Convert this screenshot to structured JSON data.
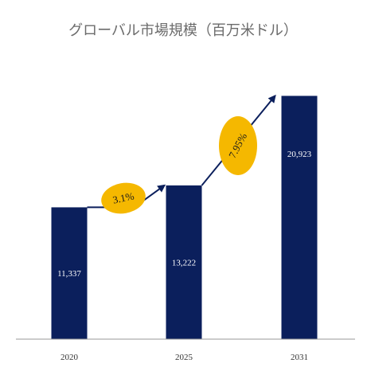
{
  "chart_data": {
    "type": "bar",
    "title": "グローバル市場規模（百万米ドル）",
    "categories": [
      "2020",
      "2025",
      "2031"
    ],
    "values": [
      11337,
      13222,
      20923
    ],
    "value_labels": [
      "11,337",
      "13,222",
      "20,923"
    ],
    "ylim": [
      0,
      21500
    ],
    "grid": false,
    "annotations": [
      {
        "from": "2020",
        "to": "2025",
        "label": "3.1%"
      },
      {
        "from": "2025",
        "to": "2031",
        "label": "7.95%"
      }
    ]
  },
  "colors": {
    "bar": "#0b1f5c",
    "arrow": "#0b1f5c",
    "bubble": "#f5b800",
    "axis": "#999999"
  }
}
